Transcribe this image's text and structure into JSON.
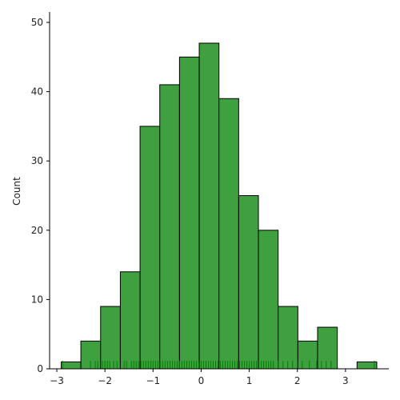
{
  "chart_data": {
    "type": "bar",
    "title": "",
    "xlabel": "",
    "ylabel": "Count",
    "xlim": [
      -3.15,
      3.9
    ],
    "ylim": [
      0,
      51.5
    ],
    "grid": false,
    "bar_color": "#3fa03f",
    "edge_color": "#000000",
    "rug_color": "#008000",
    "bins": [
      {
        "x0": -2.91,
        "x1": -2.5,
        "count": 1
      },
      {
        "x0": -2.5,
        "x1": -2.09,
        "count": 4
      },
      {
        "x0": -2.09,
        "x1": -1.68,
        "count": 9
      },
      {
        "x0": -1.68,
        "x1": -1.27,
        "count": 14
      },
      {
        "x0": -1.27,
        "x1": -0.86,
        "count": 35
      },
      {
        "x0": -0.86,
        "x1": -0.45,
        "count": 41
      },
      {
        "x0": -0.45,
        "x1": -0.04,
        "count": 45
      },
      {
        "x0": -0.04,
        "x1": 0.37,
        "count": 47
      },
      {
        "x0": 0.37,
        "x1": 0.78,
        "count": 39
      },
      {
        "x0": 0.78,
        "x1": 1.19,
        "count": 25
      },
      {
        "x0": 1.19,
        "x1": 1.6,
        "count": 20
      },
      {
        "x0": 1.6,
        "x1": 2.01,
        "count": 9
      },
      {
        "x0": 2.01,
        "x1": 2.42,
        "count": 4
      },
      {
        "x0": 2.42,
        "x1": 2.83,
        "count": 6
      },
      {
        "x0": 2.83,
        "x1": 3.24,
        "count": 0
      },
      {
        "x0": 3.24,
        "x1": 3.65,
        "count": 1
      }
    ],
    "x_ticks": [
      {
        "value": -3,
        "label": "−3"
      },
      {
        "value": -2,
        "label": "−2"
      },
      {
        "value": -1,
        "label": "−1"
      },
      {
        "value": 0,
        "label": "0"
      },
      {
        "value": 1,
        "label": "1"
      },
      {
        "value": 2,
        "label": "2"
      },
      {
        "value": 3,
        "label": "3"
      }
    ],
    "y_ticks": [
      {
        "value": 0,
        "label": "0"
      },
      {
        "value": 10,
        "label": "10"
      },
      {
        "value": 20,
        "label": "20"
      },
      {
        "value": 30,
        "label": "30"
      },
      {
        "value": 40,
        "label": "40"
      },
      {
        "value": 50,
        "label": "50"
      }
    ],
    "rug_points": [
      -2.88,
      -2.3,
      -2.2,
      -2.15,
      -2.05,
      -2.0,
      -1.95,
      -1.9,
      -1.82,
      -1.75,
      -1.6,
      -1.55,
      -1.45,
      -1.4,
      -1.35,
      -1.3,
      -1.25,
      -1.2,
      -1.15,
      -1.1,
      -1.05,
      -1.0,
      -0.95,
      -0.9,
      -0.85,
      -0.8,
      -0.75,
      -0.7,
      -0.65,
      -0.6,
      -0.55,
      -0.5,
      -0.45,
      -0.4,
      -0.35,
      -0.3,
      -0.25,
      -0.2,
      -0.15,
      -0.1,
      -0.05,
      0.0,
      0.05,
      0.1,
      0.15,
      0.2,
      0.25,
      0.3,
      0.35,
      0.4,
      0.45,
      0.5,
      0.55,
      0.6,
      0.65,
      0.7,
      0.75,
      0.8,
      0.85,
      0.9,
      0.95,
      1.0,
      1.05,
      1.1,
      1.15,
      1.2,
      1.25,
      1.3,
      1.35,
      1.4,
      1.45,
      1.5,
      1.6,
      1.7,
      1.8,
      1.9,
      2.0,
      2.1,
      2.25,
      2.4,
      2.5,
      2.6,
      2.7,
      3.6
    ]
  }
}
